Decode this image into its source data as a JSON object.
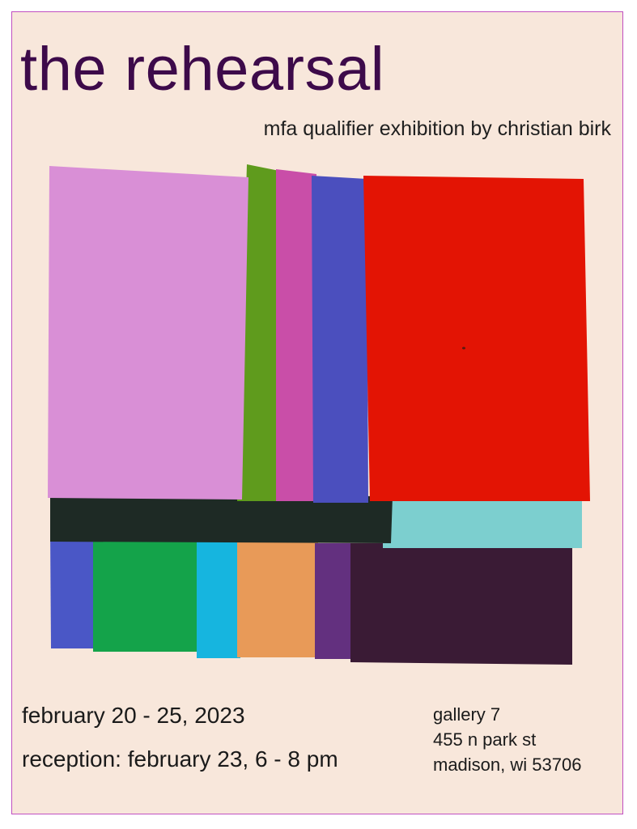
{
  "poster": {
    "title": "the rehearsal",
    "subtitle": "mfa qualifier exhibition by christian birk",
    "dates": "february 20 - 25, 2023",
    "reception": "reception: february 23, 6 - 8 pm",
    "venue": {
      "name": "gallery 7",
      "street": "455 n park st",
      "city": "madison, wi 53706"
    }
  },
  "colors": {
    "background": "#f8e7db",
    "border": "#c14fc1",
    "title": "#3d0a4a",
    "swatches": [
      "#d98fd6",
      "#5f9b1d",
      "#c94ea8",
      "#4b4fbe",
      "#e31404",
      "#1e2a25",
      "#7ccfcf",
      "#4a57c6",
      "#14a34a",
      "#16b5df",
      "#e89a58",
      "#63307f",
      "#3a1b35"
    ]
  }
}
